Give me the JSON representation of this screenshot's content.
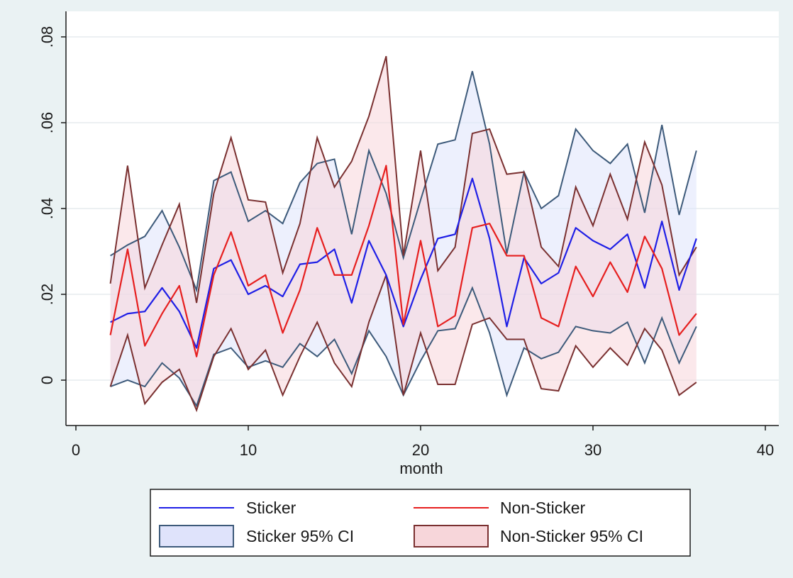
{
  "colors": {
    "background": "#eaf2f3",
    "plot_background": "#ffffff",
    "sticker": "#1f1fe6",
    "non_sticker": "#e61f1f",
    "sticker_ci_fill": "#dfe3fb",
    "sticker_ci_line": "#3d5a7a",
    "non_sticker_ci_fill": "#f7d6da",
    "non_sticker_ci_line": "#7a3030",
    "grid": "#e6ecee"
  },
  "chart_data": {
    "type": "line",
    "title": "",
    "xlabel": "month",
    "ylabel": "",
    "xlim": [
      0,
      40
    ],
    "ylim": [
      -0.01,
      0.081
    ],
    "x_ticks": [
      0,
      10,
      20,
      30,
      40
    ],
    "x_tick_labels": [
      "0",
      "10",
      "20",
      "30",
      "40"
    ],
    "y_ticks": [
      0,
      0.02,
      0.04,
      0.06,
      0.08
    ],
    "y_tick_labels": [
      "0",
      ".02",
      ".04",
      ".06",
      ".08"
    ],
    "grid": true,
    "legend_position": "bottom",
    "x": [
      2,
      3,
      4,
      5,
      6,
      7,
      8,
      9,
      10,
      11,
      12,
      13,
      14,
      15,
      16,
      17,
      18,
      19,
      20,
      21,
      22,
      23,
      24,
      25,
      26,
      27,
      28,
      29,
      30,
      31,
      32,
      33,
      34,
      35,
      36
    ],
    "series": [
      {
        "name": "Sticker",
        "kind": "line",
        "values": [
          0.0135,
          0.0155,
          0.016,
          0.0215,
          0.016,
          0.0075,
          0.026,
          0.028,
          0.02,
          0.022,
          0.0195,
          0.027,
          0.0275,
          0.0305,
          0.018,
          0.0325,
          0.0245,
          0.0125,
          0.0235,
          0.033,
          0.034,
          0.047,
          0.033,
          0.0125,
          0.0285,
          0.0225,
          0.025,
          0.0355,
          0.0325,
          0.0305,
          0.034,
          0.0215,
          0.037,
          0.021,
          0.033
        ]
      },
      {
        "name": "Non-Sticker",
        "kind": "line",
        "values": [
          0.0105,
          0.0305,
          0.008,
          0.0155,
          0.022,
          0.0055,
          0.0245,
          0.0345,
          0.022,
          0.0245,
          0.011,
          0.021,
          0.0355,
          0.0245,
          0.0245,
          0.036,
          0.05,
          0.013,
          0.0325,
          0.0125,
          0.015,
          0.0355,
          0.0365,
          0.029,
          0.029,
          0.0145,
          0.0125,
          0.0265,
          0.0195,
          0.0275,
          0.0205,
          0.0335,
          0.026,
          0.0105,
          0.0155
        ]
      },
      {
        "name": "Sticker 95% CI",
        "kind": "band",
        "lower": [
          -0.0015,
          0.0,
          -0.0015,
          0.004,
          0.0005,
          -0.006,
          0.006,
          0.0075,
          0.003,
          0.0045,
          0.003,
          0.0085,
          0.0055,
          0.0095,
          0.0015,
          0.0115,
          0.0055,
          -0.0035,
          0.0045,
          0.0115,
          0.012,
          0.0215,
          0.011,
          -0.0035,
          0.0075,
          0.005,
          0.0065,
          0.0125,
          0.0115,
          0.011,
          0.0135,
          0.004,
          0.0145,
          0.004,
          0.0125
        ],
        "upper": [
          0.029,
          0.0315,
          0.0335,
          0.0395,
          0.031,
          0.021,
          0.0465,
          0.0485,
          0.037,
          0.0395,
          0.0365,
          0.046,
          0.0505,
          0.0515,
          0.034,
          0.0535,
          0.0435,
          0.0285,
          0.042,
          0.055,
          0.056,
          0.072,
          0.055,
          0.0295,
          0.0485,
          0.04,
          0.043,
          0.0585,
          0.0535,
          0.0505,
          0.055,
          0.039,
          0.0595,
          0.0385,
          0.0535
        ]
      },
      {
        "name": "Non-Sticker 95% CI",
        "kind": "band",
        "lower": [
          -0.0015,
          0.0105,
          -0.0055,
          -0.0005,
          0.0025,
          -0.007,
          0.0055,
          0.012,
          0.0025,
          0.007,
          -0.0035,
          0.0055,
          0.0135,
          0.004,
          -0.0015,
          0.0135,
          0.0245,
          -0.0035,
          0.011,
          -0.001,
          -0.001,
          0.013,
          0.0145,
          0.0095,
          0.0095,
          -0.002,
          -0.0025,
          0.008,
          0.003,
          0.0075,
          0.0035,
          0.012,
          0.007,
          -0.0035,
          -0.0005
        ],
        "upper": [
          0.0225,
          0.05,
          0.0215,
          0.0315,
          0.041,
          0.018,
          0.0435,
          0.0565,
          0.042,
          0.0415,
          0.025,
          0.0365,
          0.0565,
          0.045,
          0.051,
          0.0615,
          0.0755,
          0.029,
          0.0535,
          0.0255,
          0.031,
          0.0575,
          0.0585,
          0.048,
          0.0485,
          0.031,
          0.0265,
          0.045,
          0.036,
          0.048,
          0.0375,
          0.0555,
          0.0455,
          0.0245,
          0.031
        ]
      }
    ]
  },
  "legend": {
    "items": [
      {
        "label": "Sticker"
      },
      {
        "label": "Non-Sticker"
      },
      {
        "label": "Sticker 95% CI"
      },
      {
        "label": "Non-Sticker 95% CI"
      }
    ]
  }
}
